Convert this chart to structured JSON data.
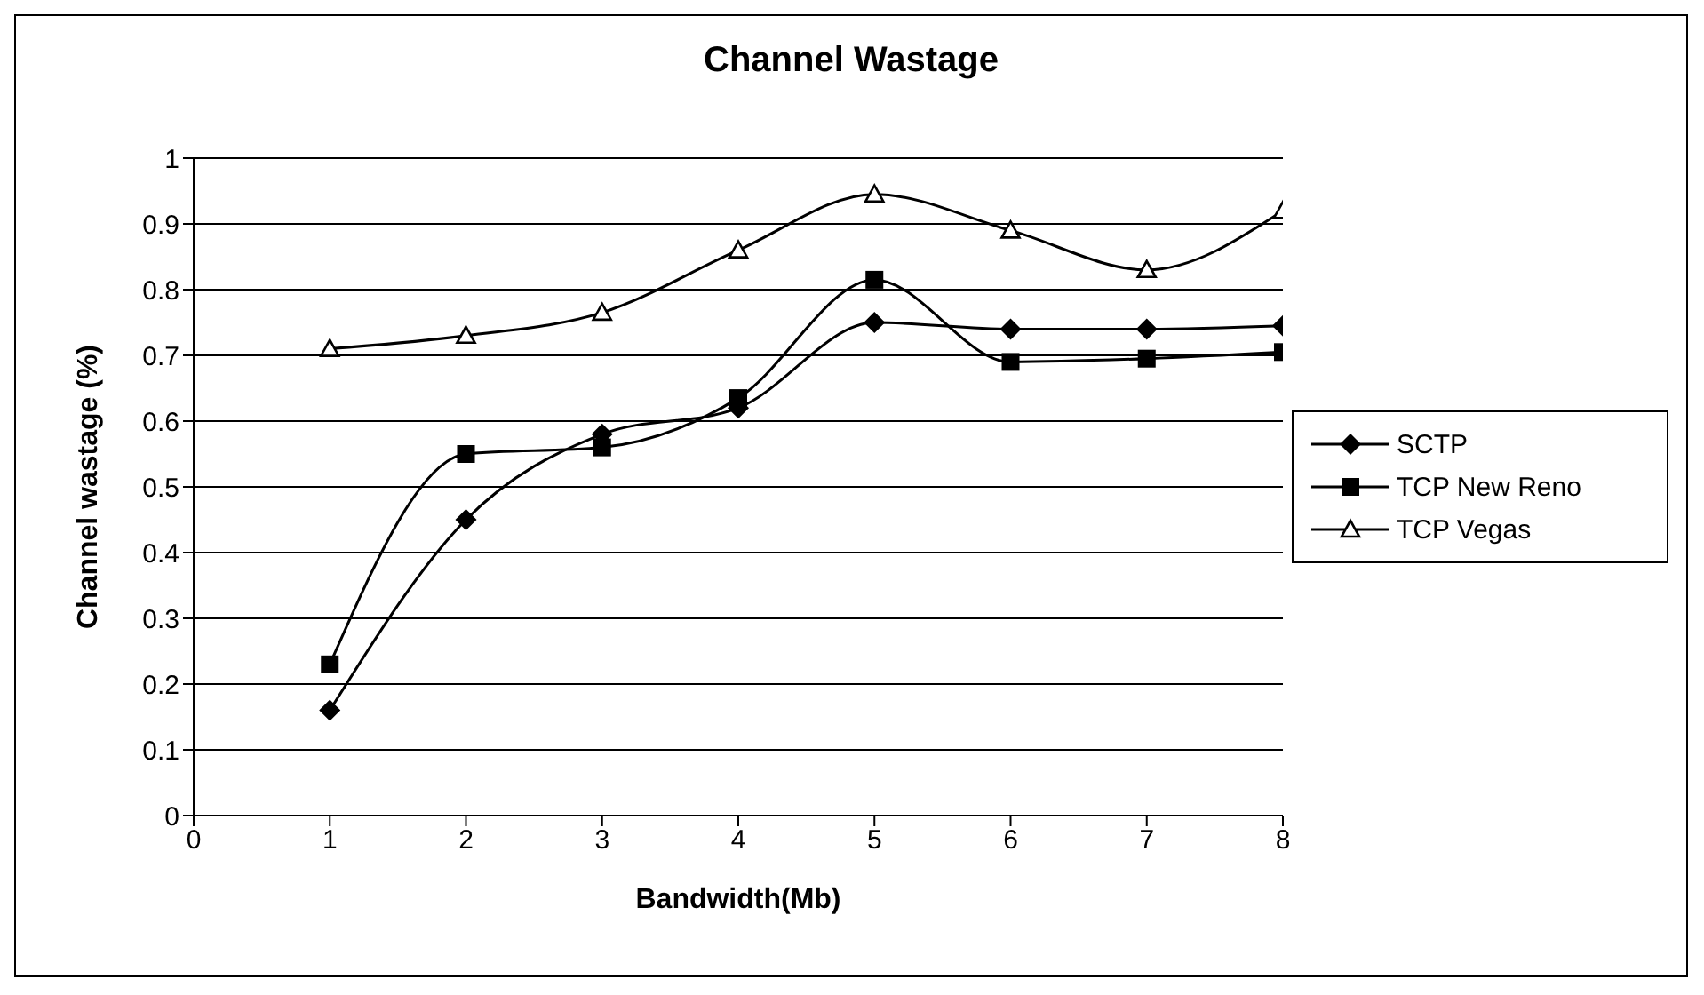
{
  "chart_data": {
    "type": "line",
    "title": "Channel Wastage",
    "xlabel": "Bandwidth(Mb)",
    "ylabel": "Channel wastage (%)",
    "x": [
      1,
      2,
      3,
      4,
      5,
      6,
      7,
      8
    ],
    "series": [
      {
        "name": "SCTP",
        "color": "#000000",
        "marker": "diamond",
        "values": [
          0.16,
          0.45,
          0.58,
          0.62,
          0.75,
          0.74,
          0.74,
          0.745
        ]
      },
      {
        "name": "TCP New  Reno",
        "color": "#000000",
        "marker": "square",
        "values": [
          0.23,
          0.55,
          0.56,
          0.635,
          0.815,
          0.69,
          0.695,
          0.705
        ]
      },
      {
        "name": "TCP Vegas",
        "color": "#000000",
        "marker": "triangle",
        "values": [
          0.71,
          0.73,
          0.765,
          0.86,
          0.945,
          0.89,
          0.83,
          0.92
        ]
      }
    ],
    "xlim": [
      0,
      8
    ],
    "xticks": [
      0,
      1,
      2,
      3,
      4,
      5,
      6,
      7,
      8
    ],
    "ylim": [
      0,
      1
    ],
    "yticks": [
      0,
      0.1,
      0.2,
      0.3,
      0.4,
      0.5,
      0.6,
      0.7,
      0.8,
      0.9,
      1
    ],
    "grid": "y",
    "legend": "right",
    "line_style": "solid"
  }
}
